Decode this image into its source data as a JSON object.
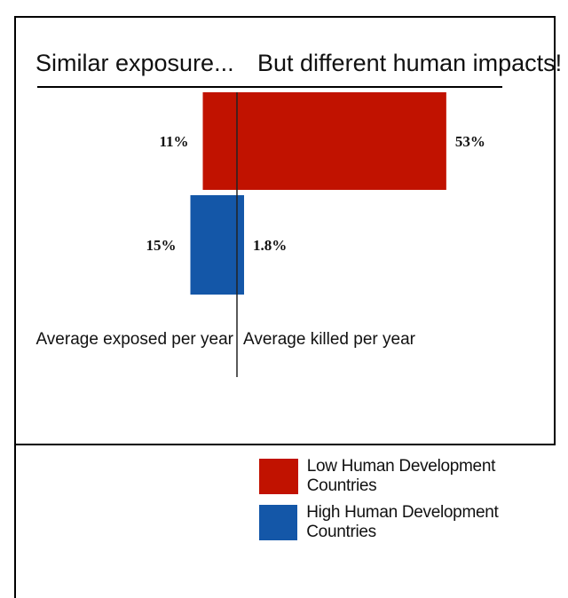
{
  "chart_data": {
    "type": "bar",
    "orientation": "horizontal-diverging",
    "titles": {
      "left": "Similar exposure...",
      "right": "But different human impacts!"
    },
    "panels": [
      {
        "name": "Average exposed per year",
        "side": "left"
      },
      {
        "name": "Average killed per year",
        "side": "right"
      }
    ],
    "series": [
      {
        "name": "Low Human Development Countries",
        "color": "#c11200",
        "values": {
          "exposed": 11,
          "killed": 53
        },
        "labels": {
          "exposed": "11%",
          "killed": "53%"
        }
      },
      {
        "name": "High Human Development Countries",
        "color": "#1457a8",
        "values": {
          "exposed": 15,
          "killed": 1.8
        },
        "labels": {
          "exposed": "15%",
          "killed": "1.8%"
        }
      }
    ],
    "unit": "%",
    "grid": false,
    "legend_position": "bottom-right"
  },
  "legend": {
    "items": [
      {
        "label": "Low Human Development Countries",
        "color": "#c11200"
      },
      {
        "label": "High Human Development Countries",
        "color": "#1457a8"
      }
    ]
  }
}
